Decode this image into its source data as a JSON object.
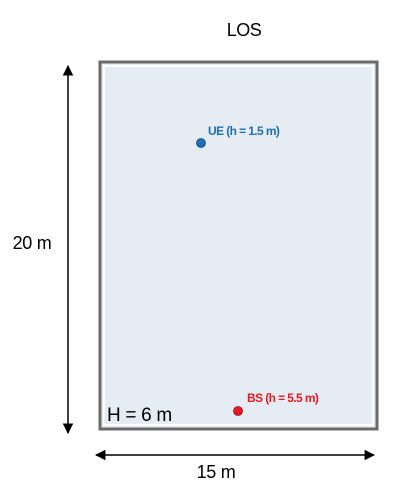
{
  "title": "LOS",
  "room": {
    "fill_color": "#e6ecf4",
    "border_color": "#6b6b6b",
    "height_label": "H = 6 m"
  },
  "dimensions": {
    "width_label": "15 m",
    "length_label": "20 m",
    "arrow_color": "#000000"
  },
  "ue": {
    "label": "UE (h = 1.5 m)",
    "color": "#1f6fb6"
  },
  "bs": {
    "label": "BS (h = 5.5 m)",
    "color": "#e8191f"
  }
}
